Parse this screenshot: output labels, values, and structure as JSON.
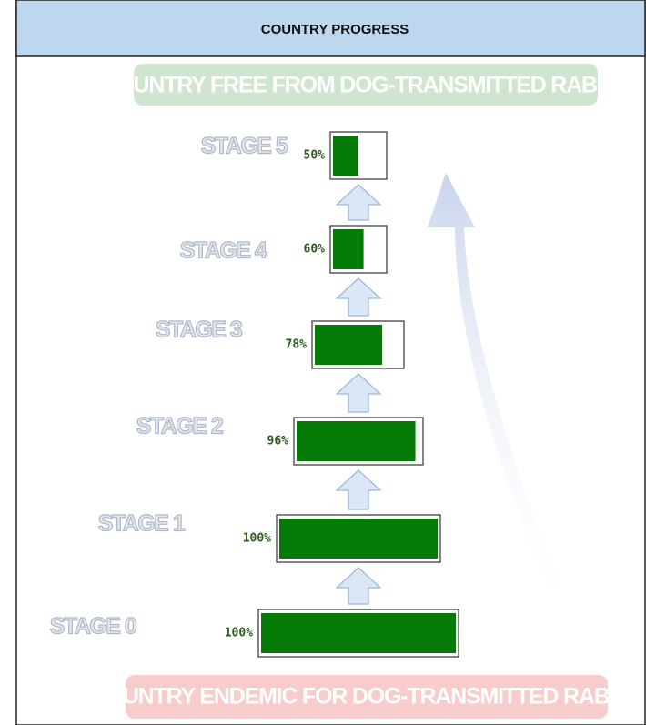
{
  "header": {
    "title": "COUNTRY PROGRESS"
  },
  "goal": "COUNTRY FREE FROM DOG-TRANSMITTED RABIES",
  "start": "COUNTRY ENDEMIC FOR DOG-TRANSMITTED RABIES",
  "stages": [
    {
      "label": "STAGE 5",
      "value": 50,
      "value_label": "50%"
    },
    {
      "label": "STAGE 4",
      "value": 60,
      "value_label": "60%"
    },
    {
      "label": "STAGE 3",
      "value": 78,
      "value_label": "78%"
    },
    {
      "label": "STAGE 2",
      "value": 96,
      "value_label": "96%"
    },
    {
      "label": "STAGE 1",
      "value": 100,
      "value_label": "100%"
    },
    {
      "label": "STAGE 0",
      "value": 100,
      "value_label": "100%"
    }
  ]
}
